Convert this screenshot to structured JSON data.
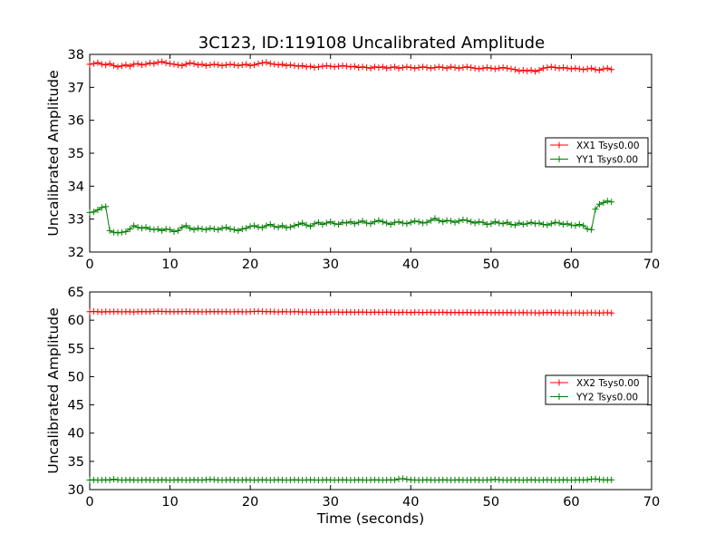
{
  "title": "3C123, ID:119108 Uncalibrated Amplitude",
  "chart_data": [
    {
      "type": "line",
      "xlabel": "",
      "ylabel": "Uncalibrated Amplitude",
      "xlim": [
        0,
        70
      ],
      "ylim": [
        32,
        38
      ],
      "xticks": [
        "0",
        "10",
        "20",
        "30",
        "40",
        "50",
        "60",
        "70"
      ],
      "yticks": [
        "32",
        "33",
        "34",
        "35",
        "36",
        "37",
        "38"
      ],
      "grid": false,
      "legend_position": "center-right",
      "series": [
        {
          "name": "XX1 Tsys0.00",
          "color": "#ff0000",
          "x_start": 0,
          "x_step": 0.5,
          "values": [
            37.7,
            37.72,
            37.75,
            37.7,
            37.68,
            37.72,
            37.66,
            37.62,
            37.65,
            37.68,
            37.64,
            37.7,
            37.72,
            37.68,
            37.7,
            37.74,
            37.72,
            37.76,
            37.78,
            37.74,
            37.72,
            37.7,
            37.68,
            37.66,
            37.7,
            37.74,
            37.72,
            37.68,
            37.7,
            37.66,
            37.68,
            37.7,
            37.68,
            37.66,
            37.68,
            37.7,
            37.68,
            37.66,
            37.68,
            37.7,
            37.66,
            37.68,
            37.72,
            37.74,
            37.76,
            37.72,
            37.7,
            37.68,
            37.7,
            37.66,
            37.68,
            37.66,
            37.64,
            37.66,
            37.62,
            37.64,
            37.6,
            37.62,
            37.64,
            37.66,
            37.64,
            37.62,
            37.64,
            37.66,
            37.64,
            37.62,
            37.64,
            37.6,
            37.62,
            37.6,
            37.58,
            37.62,
            37.6,
            37.62,
            37.58,
            37.6,
            37.62,
            37.58,
            37.6,
            37.62,
            37.6,
            37.58,
            37.6,
            37.62,
            37.6,
            37.58,
            37.6,
            37.62,
            37.6,
            37.58,
            37.62,
            37.6,
            37.58,
            37.6,
            37.62,
            37.6,
            37.58,
            37.56,
            37.58,
            37.6,
            37.58,
            37.56,
            37.58,
            37.6,
            37.58,
            37.56,
            37.54,
            37.5,
            37.52,
            37.5,
            37.52,
            37.48,
            37.52,
            37.58,
            37.6,
            37.62,
            37.6,
            37.58,
            37.6,
            37.58,
            37.56,
            37.58,
            37.56,
            37.54,
            37.56,
            37.58,
            37.54,
            37.52,
            37.56,
            37.58,
            37.54
          ]
        },
        {
          "name": "YY1 Tsys0.00",
          "color": "#007f00",
          "x_start": 0,
          "x_step": 0.5,
          "values": [
            33.2,
            33.22,
            33.28,
            33.35,
            33.38,
            32.65,
            32.6,
            32.58,
            32.6,
            32.62,
            32.7,
            32.8,
            32.75,
            32.72,
            32.75,
            32.7,
            32.68,
            32.7,
            32.65,
            32.7,
            32.68,
            32.62,
            32.65,
            32.75,
            32.8,
            32.72,
            32.68,
            32.72,
            32.7,
            32.68,
            32.72,
            32.7,
            32.68,
            32.72,
            32.75,
            32.7,
            32.68,
            32.65,
            32.7,
            32.72,
            32.78,
            32.8,
            32.76,
            32.74,
            32.8,
            32.84,
            32.78,
            32.75,
            32.8,
            32.74,
            32.76,
            32.8,
            32.84,
            32.88,
            32.82,
            32.78,
            32.86,
            32.9,
            32.84,
            32.88,
            32.92,
            32.86,
            32.84,
            32.9,
            32.88,
            32.92,
            32.86,
            32.9,
            32.94,
            32.88,
            32.86,
            32.92,
            32.96,
            32.92,
            32.88,
            32.84,
            32.9,
            32.92,
            32.88,
            32.86,
            32.9,
            32.94,
            32.92,
            32.88,
            32.9,
            32.96,
            33.02,
            32.96,
            32.92,
            32.96,
            32.94,
            32.9,
            32.94,
            32.98,
            32.96,
            32.92,
            32.88,
            32.92,
            32.9,
            32.84,
            32.86,
            32.92,
            32.88,
            32.86,
            32.9,
            32.84,
            32.82,
            32.88,
            32.84,
            32.86,
            32.9,
            32.86,
            32.88,
            32.84,
            32.82,
            32.86,
            32.9,
            32.88,
            32.84,
            32.86,
            32.82,
            32.8,
            32.84,
            32.8,
            32.7,
            32.68,
            33.3,
            33.45,
            33.5,
            33.55,
            33.52
          ]
        }
      ]
    },
    {
      "type": "line",
      "xlabel": "Time (seconds)",
      "ylabel": "Uncalibrated Amplitude",
      "xlim": [
        0,
        70
      ],
      "ylim": [
        30,
        65
      ],
      "xticks": [
        "0",
        "10",
        "20",
        "30",
        "40",
        "50",
        "60",
        "70"
      ],
      "yticks": [
        "30",
        "35",
        "40",
        "45",
        "50",
        "55",
        "60",
        "65"
      ],
      "grid": false,
      "legend_position": "center-right",
      "series": [
        {
          "name": "XX2 Tsys0.00",
          "color": "#ff0000",
          "x_start": 0,
          "x_step": 0.5,
          "values": [
            61.5,
            61.55,
            61.5,
            61.45,
            61.5,
            61.48,
            61.52,
            61.5,
            61.46,
            61.5,
            61.48,
            61.45,
            61.5,
            61.52,
            61.5,
            61.48,
            61.55,
            61.6,
            61.55,
            61.5,
            61.52,
            61.48,
            61.5,
            61.52,
            61.55,
            61.5,
            61.48,
            61.5,
            61.46,
            61.48,
            61.5,
            61.52,
            61.5,
            61.48,
            61.5,
            61.46,
            61.48,
            61.5,
            61.48,
            61.46,
            61.5,
            61.55,
            61.6,
            61.55,
            61.5,
            61.52,
            61.48,
            61.45,
            61.5,
            61.48,
            61.46,
            61.5,
            61.48,
            61.44,
            61.46,
            61.42,
            61.4,
            61.44,
            61.42,
            61.4,
            61.44,
            61.46,
            61.42,
            61.4,
            61.42,
            61.44,
            61.4,
            61.42,
            61.44,
            61.4,
            61.38,
            61.42,
            61.4,
            61.38,
            61.42,
            61.4,
            61.38,
            61.36,
            61.4,
            61.38,
            61.36,
            61.4,
            61.38,
            61.36,
            61.38,
            61.4,
            61.36,
            61.38,
            61.4,
            61.36,
            61.34,
            61.38,
            61.36,
            61.34,
            61.38,
            61.36,
            61.34,
            61.36,
            61.38,
            61.34,
            61.32,
            61.36,
            61.34,
            61.32,
            61.36,
            61.34,
            61.3,
            61.32,
            61.34,
            61.3,
            61.32,
            61.3,
            61.28,
            61.32,
            61.34,
            61.36,
            61.34,
            61.32,
            61.3,
            61.28,
            61.3,
            61.32,
            61.3,
            61.28,
            61.3,
            61.32,
            61.3,
            61.28,
            61.3,
            61.32,
            61.28
          ]
        },
        {
          "name": "YY2 Tsys0.00",
          "color": "#007f00",
          "x_start": 0,
          "x_step": 0.5,
          "values": [
            31.7,
            31.72,
            31.68,
            31.7,
            31.72,
            31.7,
            31.85,
            31.72,
            31.68,
            31.7,
            31.72,
            31.7,
            31.68,
            31.7,
            31.72,
            31.7,
            31.68,
            31.7,
            31.72,
            31.7,
            31.68,
            31.7,
            31.72,
            31.7,
            31.68,
            31.7,
            31.72,
            31.7,
            31.68,
            31.75,
            31.82,
            31.75,
            31.7,
            31.68,
            31.7,
            31.72,
            31.7,
            31.68,
            31.7,
            31.72,
            31.7,
            31.68,
            31.7,
            31.72,
            31.7,
            31.68,
            31.7,
            31.72,
            31.7,
            31.68,
            31.7,
            31.72,
            31.7,
            31.68,
            31.7,
            31.72,
            31.7,
            31.68,
            31.7,
            31.72,
            31.7,
            31.68,
            31.7,
            31.72,
            31.7,
            31.68,
            31.7,
            31.72,
            31.7,
            31.68,
            31.7,
            31.72,
            31.7,
            31.68,
            31.7,
            31.72,
            31.7,
            31.88,
            31.95,
            31.82,
            31.72,
            31.7,
            31.68,
            31.7,
            31.72,
            31.7,
            31.68,
            31.7,
            31.72,
            31.7,
            31.68,
            31.7,
            31.72,
            31.7,
            31.68,
            31.7,
            31.72,
            31.7,
            31.68,
            31.7,
            31.72,
            31.8,
            31.75,
            31.7,
            31.68,
            31.7,
            31.72,
            31.7,
            31.68,
            31.7,
            31.72,
            31.7,
            31.68,
            31.7,
            31.72,
            31.7,
            31.68,
            31.7,
            31.72,
            31.7,
            31.68,
            31.7,
            31.72,
            31.7,
            31.72,
            31.85,
            31.9,
            31.78,
            31.72,
            31.7,
            31.72
          ]
        }
      ]
    }
  ]
}
